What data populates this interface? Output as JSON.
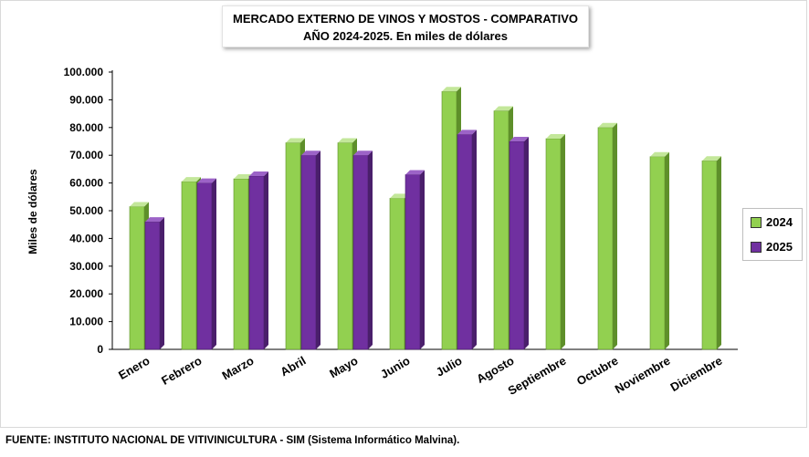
{
  "chart_data": {
    "type": "bar",
    "title_line1": "MERCADO EXTERNO DE VINOS Y MOSTOS - COMPARATIVO",
    "title_line2": "AÑO 2024-2025. En miles de dólares",
    "ylabel": "Miles de dólares",
    "ylim": [
      0,
      100000
    ],
    "yticks": [
      0,
      10000,
      20000,
      30000,
      40000,
      50000,
      60000,
      70000,
      80000,
      90000,
      100000
    ],
    "ytick_labels": [
      "0",
      "10.000",
      "20.000",
      "30.000",
      "40.000",
      "50.000",
      "60.000",
      "70.000",
      "80.000",
      "90.000",
      "100.000"
    ],
    "categories": [
      "Enero",
      "Febrero",
      "Marzo",
      "Abril",
      "Mayo",
      "Junio",
      "Julio",
      "Agosto",
      "Septiembre",
      "Octubre",
      "Noviembre",
      "Diciembre"
    ],
    "series": [
      {
        "name": "2024",
        "color": "#92d050",
        "side": "#5e8f2a",
        "top": "#c3e79a",
        "values": [
          51500,
          60500,
          61500,
          74500,
          74500,
          54500,
          93000,
          86000,
          76000,
          80000,
          69500,
          68000
        ]
      },
      {
        "name": "2025",
        "color": "#7030a0",
        "side": "#4a1f6b",
        "top": "#9c63c7",
        "values": [
          46000,
          60000,
          62500,
          70000,
          70000,
          63000,
          77500,
          75000,
          null,
          null,
          null,
          null
        ]
      }
    ],
    "legend_position": "right"
  },
  "source": "FUENTE: INSTITUTO NACIONAL DE VITIVINICULTURA - SIM (Sistema Informático Malvina)."
}
